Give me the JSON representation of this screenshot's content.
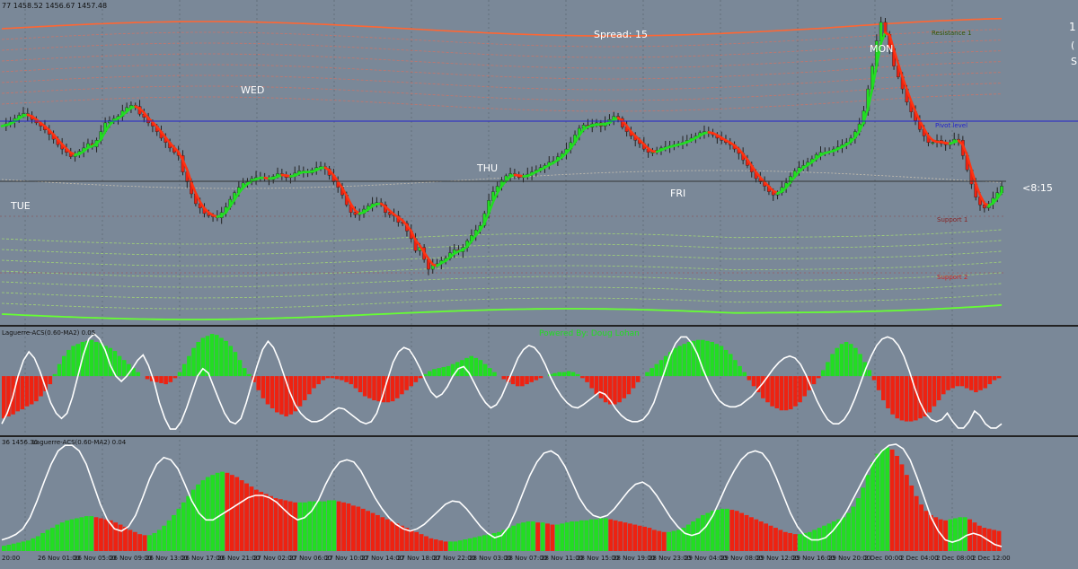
{
  "header": {
    "ohlc_readout": "77 1458.52 1456.67 1457.48",
    "spread_label": "Spread: 15",
    "powered_by": "Powered By: Doug Lohan",
    "countdown": "<8:15",
    "right_edge_chars": [
      "1",
      "(",
      "S"
    ]
  },
  "colors": {
    "bg": "#7a8898",
    "bull": "#22dd22",
    "bear": "#ee2211",
    "grid": "#55606c",
    "white": "#ffffff",
    "pivot": "#2222cc",
    "band_top": "#ff6633",
    "band_bottom": "#66ff33"
  },
  "chart_data": [
    {
      "type": "candlestick",
      "pane": "price",
      "title": "",
      "day_labels": [
        "TUE",
        "WED",
        "THU",
        "FRI",
        "MON"
      ],
      "level_labels": {
        "resistance": "Resistance 1",
        "pivot": "Pivot level",
        "support1": "Support 1",
        "support2": "Support 2"
      },
      "x_tick_labels": [
        "20:00",
        "26 Nov 01:00",
        "26 Nov 05:00",
        "26 Nov 09:00",
        "26 Nov 13:00",
        "26 Nov 17:00",
        "26 Nov 21:00",
        "27 Nov 02:00",
        "27 Nov 06:00",
        "27 Nov 10:00",
        "27 Nov 14:00",
        "27 Nov 18:00",
        "27 Nov 22:00",
        "28 Nov 03:00",
        "28 Nov 07:00",
        "28 Nov 11:00",
        "28 Nov 15:00",
        "28 Nov 19:00",
        "28 Nov 23:00",
        "29 Nov 04:00",
        "29 Nov 08:00",
        "29 Nov 12:00",
        "29 Nov 16:00",
        "29 Nov 20:00",
        "2 Dec 00:00",
        "2 Dec 04:00",
        "2 Dec 08:00",
        "2 Dec 12:00"
      ],
      "close_series": [
        262,
        266,
        270,
        276,
        282,
        285,
        281,
        274,
        268,
        262,
        255,
        247,
        238,
        228,
        220,
        214,
        206,
        210,
        216,
        222,
        230,
        224,
        236,
        252,
        268,
        272,
        276,
        280,
        290,
        296,
        300,
        298,
        284,
        278,
        268,
        262,
        252,
        240,
        232,
        222,
        214,
        208,
        178,
        160,
        138,
        120,
        112,
        102,
        98,
        96,
        94,
        104,
        114,
        128,
        140,
        150,
        158,
        160,
        166,
        168,
        168,
        166,
        164,
        170,
        175,
        172,
        168,
        170,
        176,
        180,
        178,
        176,
        182,
        186,
        188,
        184,
        172,
        160,
        150,
        136,
        118,
        104,
        100,
        102,
        110,
        116,
        120,
        122,
        118,
        104,
        100,
        98,
        86,
        84,
        70,
        56,
        34,
        40,
        18,
        0,
        8,
        10,
        16,
        20,
        30,
        36,
        32,
        40,
        52,
        62,
        72,
        80,
        102,
        126,
        142,
        152,
        163,
        171,
        175,
        172,
        168,
        170,
        174,
        178,
        182,
        186,
        190,
        196,
        198,
        206,
        212,
        220,
        232,
        246,
        258,
        264,
        260,
        266,
        268,
        262,
        268,
        274,
        280,
        276,
        260,
        252,
        244,
        236,
        230,
        220,
        214,
        214,
        218,
        222,
        224,
        226,
        228,
        230,
        232,
        236,
        240,
        244,
        250,
        252,
        250,
        246,
        240,
        236,
        232,
        228,
        220,
        212,
        200,
        190,
        178,
        166,
        160,
        152,
        142,
        136,
        140,
        150,
        158,
        170,
        180,
        186,
        190,
        196,
        202,
        210,
        214,
        214,
        216,
        220,
        224,
        228,
        232,
        240,
        252,
        266,
        290,
        330,
        372,
        418,
        452,
        430,
        404,
        372,
        352,
        330,
        306,
        288,
        272,
        256,
        244,
        232,
        232,
        236,
        230,
        228,
        232,
        238,
        236,
        208,
        182,
        156,
        132,
        118,
        112,
        120,
        130,
        140,
        152
      ]
    },
    {
      "type": "bar",
      "pane": "indicator-1",
      "title": "Laguerre-ACS(0.60-MA2) 0.05",
      "series": [
        {
          "name": "",
          "values": [
            -0.42,
            -0.4,
            -0.38,
            -0.35,
            -0.33,
            -0.3,
            -0.28,
            -0.25,
            -0.2,
            -0.15,
            -0.08,
            0.02,
            0.12,
            0.2,
            0.26,
            0.3,
            0.32,
            0.34,
            0.35,
            0.36,
            0.34,
            0.33,
            0.3,
            0.28,
            0.25,
            0.2,
            0.16,
            0.12,
            0.08,
            0.04,
            0.0,
            -0.03,
            -0.05,
            -0.06,
            -0.07,
            -0.08,
            -0.06,
            -0.02,
            0.04,
            0.12,
            0.2,
            0.28,
            0.34,
            0.38,
            0.4,
            0.42,
            0.41,
            0.38,
            0.35,
            0.3,
            0.24,
            0.16,
            0.08,
            0.02,
            -0.06,
            -0.14,
            -0.22,
            -0.28,
            -0.32,
            -0.36,
            -0.38,
            -0.4,
            -0.38,
            -0.35,
            -0.3,
            -0.24,
            -0.18,
            -0.12,
            -0.08,
            -0.04,
            -0.02,
            -0.02,
            -0.03,
            -0.04,
            -0.06,
            -0.08,
            -0.12,
            -0.16,
            -0.2,
            -0.22,
            -0.24,
            -0.25,
            -0.26,
            -0.26,
            -0.25,
            -0.22,
            -0.18,
            -0.14,
            -0.1,
            -0.06,
            -0.02,
            0.02,
            0.05,
            0.07,
            0.08,
            0.09,
            0.1,
            0.12,
            0.14,
            0.16,
            0.18,
            0.2,
            0.18,
            0.16,
            0.12,
            0.08,
            0.04,
            0.0,
            -0.03,
            -0.06,
            -0.08,
            -0.1,
            -0.1,
            -0.08,
            -0.06,
            -0.04,
            -0.02,
            0.0,
            0.02,
            0.03,
            0.04,
            0.04,
            0.05,
            0.04,
            0.02,
            -0.02,
            -0.06,
            -0.12,
            -0.18,
            -0.22,
            -0.26,
            -0.28,
            -0.28,
            -0.26,
            -0.22,
            -0.18,
            -0.12,
            -0.06,
            0.0,
            0.04,
            0.08,
            0.12,
            0.16,
            0.2,
            0.24,
            0.28,
            0.3,
            0.32,
            0.34,
            0.35,
            0.36,
            0.36,
            0.35,
            0.34,
            0.32,
            0.3,
            0.26,
            0.22,
            0.16,
            0.1,
            0.04,
            -0.04,
            -0.1,
            -0.16,
            -0.22,
            -0.26,
            -0.3,
            -0.32,
            -0.34,
            -0.34,
            -0.33,
            -0.3,
            -0.26,
            -0.2,
            -0.14,
            -0.08,
            -0.02,
            0.06,
            0.14,
            0.22,
            0.28,
            0.32,
            0.34,
            0.32,
            0.28,
            0.22,
            0.14,
            0.06,
            -0.04,
            -0.14,
            -0.24,
            -0.32,
            -0.38,
            -0.42,
            -0.44,
            -0.45,
            -0.45,
            -0.44,
            -0.42,
            -0.4,
            -0.36,
            -0.3,
            -0.24,
            -0.18,
            -0.14,
            -0.12,
            -0.1,
            -0.1,
            -0.12,
            -0.14,
            -0.16,
            -0.14,
            -0.12,
            -0.08,
            -0.04,
            -0.02
          ]
        },
        {
          "name": "",
          "type": "line",
          "values": [
            0.1,
            0.2,
            0.35,
            0.55,
            0.7,
            0.78,
            0.72,
            0.6,
            0.45,
            0.3,
            0.2,
            0.15,
            0.2,
            0.35,
            0.55,
            0.75,
            0.9,
            0.95,
            0.9,
            0.8,
            0.65,
            0.55,
            0.5,
            0.55,
            0.62,
            0.7,
            0.75,
            0.65,
            0.5,
            0.3,
            0.15,
            0.05,
            0.05,
            0.12,
            0.25,
            0.4,
            0.55,
            0.62,
            0.58,
            0.45,
            0.32,
            0.2,
            0.12,
            0.1,
            0.15,
            0.3,
            0.48,
            0.65,
            0.8,
            0.88,
            0.82,
            0.7,
            0.55,
            0.4,
            0.28,
            0.2,
            0.15,
            0.12,
            0.12,
            0.14,
            0.18,
            0.22,
            0.25,
            0.24,
            0.2,
            0.16,
            0.12,
            0.1,
            0.12,
            0.2,
            0.35,
            0.52,
            0.68,
            0.78,
            0.82,
            0.8,
            0.72,
            0.62,
            0.5,
            0.4,
            0.35,
            0.38,
            0.45,
            0.55,
            0.62,
            0.64,
            0.58,
            0.48,
            0.38,
            0.3,
            0.25,
            0.28,
            0.36,
            0.48,
            0.6,
            0.72,
            0.8,
            0.84,
            0.82,
            0.76,
            0.66,
            0.54,
            0.44,
            0.36,
            0.3,
            0.26,
            0.25,
            0.28,
            0.32,
            0.36,
            0.4,
            0.38,
            0.32,
            0.24,
            0.18,
            0.14,
            0.12,
            0.12,
            0.14,
            0.2,
            0.3,
            0.45,
            0.6,
            0.75,
            0.86,
            0.92,
            0.92,
            0.86,
            0.76,
            0.62,
            0.5,
            0.4,
            0.32,
            0.28,
            0.26,
            0.26,
            0.28,
            0.32,
            0.36,
            0.42,
            0.48,
            0.55,
            0.62,
            0.68,
            0.72,
            0.74,
            0.72,
            0.66,
            0.56,
            0.44,
            0.32,
            0.22,
            0.14,
            0.1,
            0.1,
            0.14,
            0.22,
            0.34,
            0.48,
            0.62,
            0.74,
            0.84,
            0.9,
            0.92,
            0.9,
            0.84,
            0.74,
            0.6,
            0.44,
            0.3,
            0.2,
            0.14,
            0.12,
            0.14,
            0.2,
            0.12,
            0.06,
            0.06,
            0.12,
            0.22,
            0.18,
            0.1,
            0.06,
            0.06,
            0.1
          ]
        }
      ]
    },
    {
      "type": "bar",
      "pane": "indicator-2",
      "title": "Laguerre-ACS(0.60-MA2) 0.04",
      "readout": "36 1456.36",
      "series": [
        {
          "name": "",
          "values": [
            0.05,
            0.06,
            0.07,
            0.08,
            0.09,
            0.1,
            0.12,
            0.14,
            0.17,
            0.2,
            0.22,
            0.25,
            0.27,
            0.29,
            0.3,
            0.31,
            0.32,
            0.33,
            0.33,
            0.32,
            0.31,
            0.3,
            0.29,
            0.27,
            0.25,
            0.23,
            0.2,
            0.18,
            0.16,
            0.15,
            0.15,
            0.17,
            0.2,
            0.24,
            0.29,
            0.34,
            0.4,
            0.46,
            0.52,
            0.58,
            0.63,
            0.67,
            0.7,
            0.72,
            0.74,
            0.75,
            0.74,
            0.72,
            0.7,
            0.67,
            0.64,
            0.61,
            0.58,
            0.56,
            0.54,
            0.52,
            0.5,
            0.49,
            0.48,
            0.47,
            0.46,
            0.46,
            0.46,
            0.47,
            0.47,
            0.47,
            0.47,
            0.48,
            0.48,
            0.47,
            0.46,
            0.45,
            0.43,
            0.42,
            0.4,
            0.38,
            0.36,
            0.34,
            0.32,
            0.3,
            0.28,
            0.26,
            0.24,
            0.22,
            0.2,
            0.18,
            0.16,
            0.14,
            0.12,
            0.11,
            0.1,
            0.09,
            0.09,
            0.09,
            0.1,
            0.11,
            0.12,
            0.13,
            0.14,
            0.15,
            0.16,
            0.17,
            0.18,
            0.2,
            0.22,
            0.24,
            0.26,
            0.27,
            0.28,
            0.28,
            0.27,
            0.27,
            0.26,
            0.25,
            0.25,
            0.26,
            0.27,
            0.28,
            0.28,
            0.29,
            0.29,
            0.3,
            0.3,
            0.31,
            0.31,
            0.3,
            0.29,
            0.28,
            0.27,
            0.26,
            0.25,
            0.24,
            0.23,
            0.22,
            0.2,
            0.19,
            0.18,
            0.18,
            0.19,
            0.2,
            0.22,
            0.25,
            0.28,
            0.31,
            0.34,
            0.36,
            0.38,
            0.39,
            0.4,
            0.4,
            0.39,
            0.38,
            0.36,
            0.34,
            0.32,
            0.3,
            0.28,
            0.26,
            0.24,
            0.22,
            0.2,
            0.18,
            0.17,
            0.16,
            0.16,
            0.17,
            0.18,
            0.2,
            0.22,
            0.24,
            0.26,
            0.28,
            0.3,
            0.32,
            0.36,
            0.42,
            0.5,
            0.6,
            0.72,
            0.84,
            0.92,
            0.96,
            0.98,
            0.96,
            0.9,
            0.82,
            0.72,
            0.62,
            0.52,
            0.44,
            0.38,
            0.34,
            0.32,
            0.3,
            0.29,
            0.3,
            0.31,
            0.32,
            0.32,
            0.3,
            0.27,
            0.24,
            0.22,
            0.21,
            0.2,
            0.19
          ]
        },
        {
          "name": "",
          "type": "line",
          "values": [
            0.1,
            0.12,
            0.15,
            0.2,
            0.3,
            0.45,
            0.62,
            0.78,
            0.9,
            0.95,
            0.95,
            0.9,
            0.78,
            0.6,
            0.42,
            0.28,
            0.2,
            0.18,
            0.22,
            0.32,
            0.48,
            0.65,
            0.78,
            0.84,
            0.82,
            0.74,
            0.6,
            0.45,
            0.34,
            0.28,
            0.28,
            0.32,
            0.36,
            0.4,
            0.44,
            0.48,
            0.5,
            0.5,
            0.48,
            0.44,
            0.38,
            0.32,
            0.28,
            0.3,
            0.36,
            0.46,
            0.6,
            0.72,
            0.8,
            0.82,
            0.8,
            0.72,
            0.6,
            0.48,
            0.38,
            0.3,
            0.24,
            0.2,
            0.18,
            0.2,
            0.24,
            0.3,
            0.36,
            0.42,
            0.45,
            0.44,
            0.38,
            0.3,
            0.22,
            0.16,
            0.12,
            0.14,
            0.22,
            0.36,
            0.52,
            0.68,
            0.8,
            0.88,
            0.9,
            0.86,
            0.76,
            0.62,
            0.48,
            0.38,
            0.32,
            0.3,
            0.32,
            0.38,
            0.46,
            0.54,
            0.6,
            0.62,
            0.58,
            0.5,
            0.4,
            0.3,
            0.22,
            0.16,
            0.14,
            0.16,
            0.22,
            0.32,
            0.46,
            0.6,
            0.72,
            0.82,
            0.88,
            0.9,
            0.88,
            0.8,
            0.66,
            0.5,
            0.34,
            0.22,
            0.14,
            0.1,
            0.1,
            0.12,
            0.18,
            0.26,
            0.36,
            0.48,
            0.6,
            0.72,
            0.82,
            0.9,
            0.95,
            0.96,
            0.92,
            0.82,
            0.66,
            0.48,
            0.3,
            0.18,
            0.1,
            0.08,
            0.1,
            0.14,
            0.16,
            0.14,
            0.1,
            0.06,
            0.04
          ]
        }
      ]
    }
  ]
}
